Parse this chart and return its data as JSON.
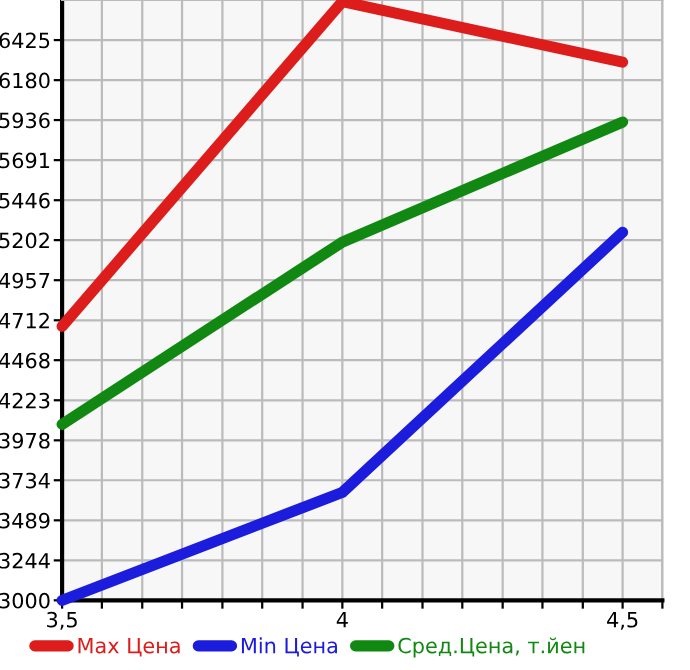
{
  "chart_data": {
    "type": "line",
    "x": [
      3.5,
      4,
      4.5
    ],
    "series": [
      {
        "name": "Max Цена",
        "color": "#dd1c1c",
        "values": [
          4675,
          6660,
          6290
        ]
      },
      {
        "name": "Min Цена",
        "color": "#1c1cdd",
        "values": [
          3000,
          3660,
          5250
        ]
      },
      {
        "name": "Сред.Цена, т.йен",
        "color": "#118811",
        "values": [
          4076,
          5190,
          5924
        ]
      }
    ],
    "xlim": [
      3.5,
      4.571
    ],
    "xticks": [
      {
        "value": 3.5,
        "label": "3,5"
      },
      {
        "value": 3.571,
        "label": null
      },
      {
        "value": 3.643,
        "label": null
      },
      {
        "value": 3.714,
        "label": null
      },
      {
        "value": 3.786,
        "label": null
      },
      {
        "value": 3.857,
        "label": null
      },
      {
        "value": 3.929,
        "label": null
      },
      4,
      {
        "value": 4.071,
        "label": null
      },
      {
        "value": 4.143,
        "label": null
      },
      {
        "value": 4.214,
        "label": null
      },
      {
        "value": 4.286,
        "label": null
      },
      {
        "value": 4.357,
        "label": null
      },
      {
        "value": 4.429,
        "label": null
      },
      {
        "value": 4.5,
        "label": "4,5"
      },
      {
        "value": 4.571,
        "label": null
      }
    ],
    "ylim": [
      3000,
      6670
    ],
    "yticks": [
      3000,
      3244,
      3489,
      3734,
      3978,
      4223,
      4468,
      4712,
      4957,
      5202,
      5446,
      5691,
      5936,
      6180,
      6425
    ],
    "grid": true,
    "legend": "bottom",
    "marker": "none",
    "line_style": "solid"
  }
}
